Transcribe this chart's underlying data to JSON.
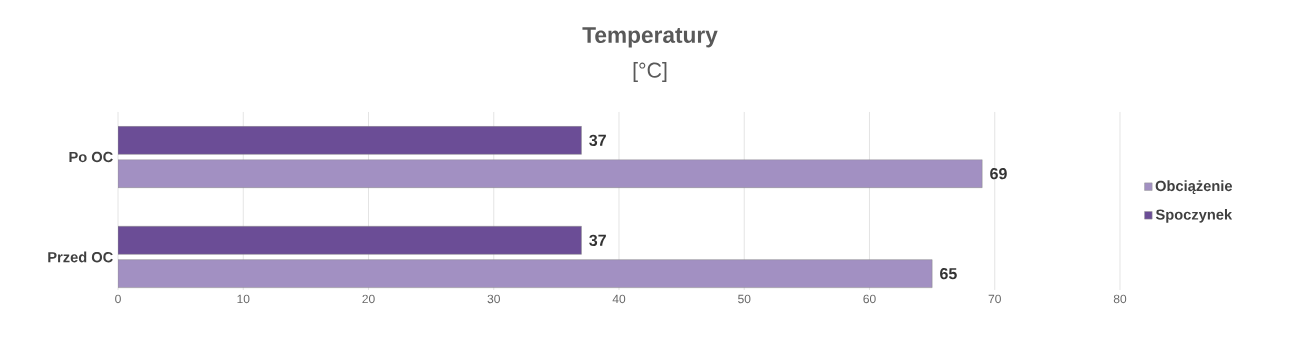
{
  "chart_data": {
    "type": "bar",
    "orientation": "horizontal",
    "title": "Temperatury",
    "subtitle": "[°C]",
    "categories": [
      "Po OC",
      "Przed OC"
    ],
    "series": [
      {
        "name": "Obciążenie",
        "color": "#a290c2",
        "values": [
          69,
          65
        ]
      },
      {
        "name": "Spoczynek",
        "color": "#6b4d96",
        "values": [
          37,
          37
        ]
      }
    ],
    "xlim": [
      0,
      80
    ],
    "xticks": [
      0,
      10,
      20,
      30,
      40,
      50,
      60,
      70,
      80
    ],
    "grid": "x",
    "legend": "right",
    "data_labels": true
  }
}
